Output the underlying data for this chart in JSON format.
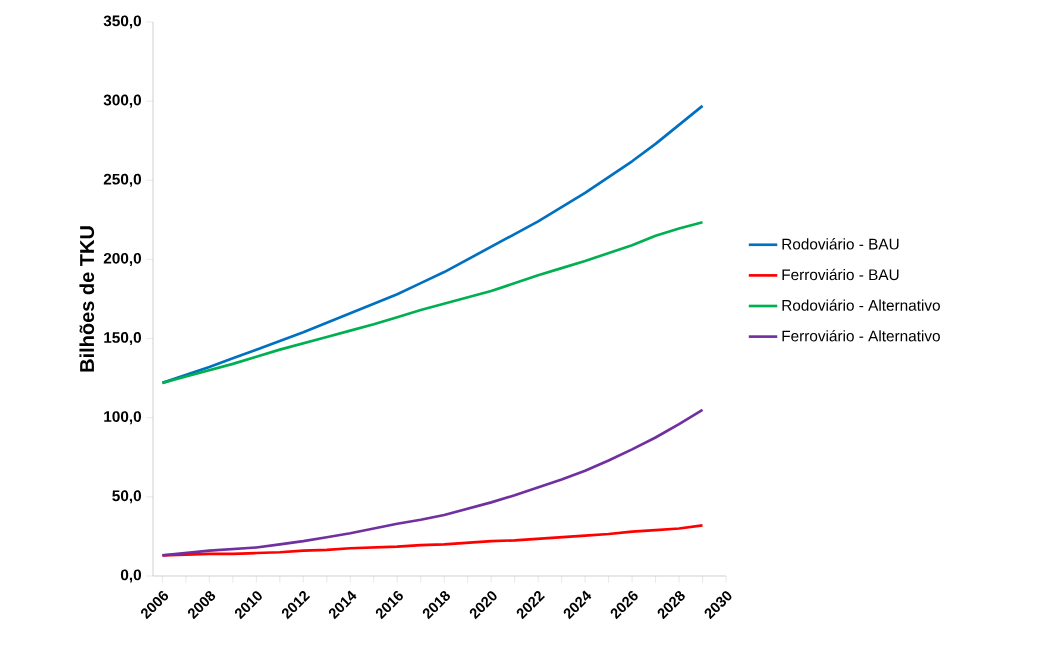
{
  "chart_data": {
    "type": "line",
    "ylabel": "Bilhões de TKU",
    "x": [
      2006,
      2007,
      2008,
      2009,
      2010,
      2011,
      2012,
      2013,
      2014,
      2015,
      2016,
      2017,
      2018,
      2019,
      2020,
      2021,
      2022,
      2023,
      2024,
      2025,
      2026,
      2027,
      2028,
      2029
    ],
    "series": [
      {
        "name": "Rodoviário - BAU",
        "color": "#0070c0",
        "values": [
          122,
          127,
          132,
          137.5,
          143,
          148.5,
          154,
          160,
          166,
          172,
          178,
          185,
          192,
          200,
          208,
          216,
          224,
          233,
          242,
          252,
          262,
          273,
          285,
          297
        ]
      },
      {
        "name": "Ferroviário - BAU",
        "color": "#ff0000",
        "values": [
          13,
          13.5,
          14,
          14,
          14.5,
          15,
          16,
          16.5,
          17.5,
          18,
          18.5,
          19.5,
          20,
          21,
          22,
          22.5,
          23.5,
          24.5,
          25.5,
          26.5,
          28,
          29,
          30,
          32
        ]
      },
      {
        "name": "Rodoviário - Alternativo",
        "color": "#00b050",
        "values": [
          122,
          126,
          130,
          134,
          138.5,
          143,
          147,
          151,
          155,
          159,
          163.5,
          168,
          172,
          176,
          180,
          185,
          190,
          194.5,
          199,
          204,
          209,
          215,
          219.5,
          223.5
        ]
      },
      {
        "name": "Ferroviário - Alternativo",
        "color": "#7030a0",
        "values": [
          13,
          14.5,
          16,
          17,
          18,
          20,
          22,
          24.5,
          27,
          30,
          33,
          35.5,
          38.5,
          42.5,
          46.5,
          51,
          56,
          61,
          66.5,
          73,
          80,
          87.5,
          96,
          105
        ]
      }
    ],
    "xlim": [
      2005.6,
      2030
    ],
    "ylim": [
      0,
      350
    ],
    "xticks": [
      2006,
      {
        "value": 2007,
        "label": null
      },
      2008,
      {
        "value": 2009,
        "label": null
      },
      2010,
      {
        "value": 2011,
        "label": null
      },
      2012,
      {
        "value": 2013,
        "label": null
      },
      2014,
      {
        "value": 2015,
        "label": null
      },
      2016,
      {
        "value": 2017,
        "label": null
      },
      2018,
      {
        "value": 2019,
        "label": null
      },
      2020,
      {
        "value": 2021,
        "label": null
      },
      2022,
      {
        "value": 2023,
        "label": null
      },
      2024,
      {
        "value": 2025,
        "label": null
      },
      2026,
      {
        "value": 2027,
        "label": null
      },
      2028,
      {
        "value": 2029,
        "label": null
      },
      2030
    ],
    "yticks": [
      {
        "value": 0,
        "label": "0,0"
      },
      {
        "value": 50,
        "label": "50,0"
      },
      {
        "value": 100,
        "label": "100,0"
      },
      {
        "value": 150,
        "label": "150,0"
      },
      {
        "value": 200,
        "label": "200,0"
      },
      {
        "value": 250,
        "label": "250,0"
      },
      {
        "value": 300,
        "label": "300,0"
      },
      {
        "value": 350,
        "label": "350,0"
      }
    ],
    "legend": "right",
    "grid": false,
    "marker": "none",
    "line_style": "solid"
  }
}
